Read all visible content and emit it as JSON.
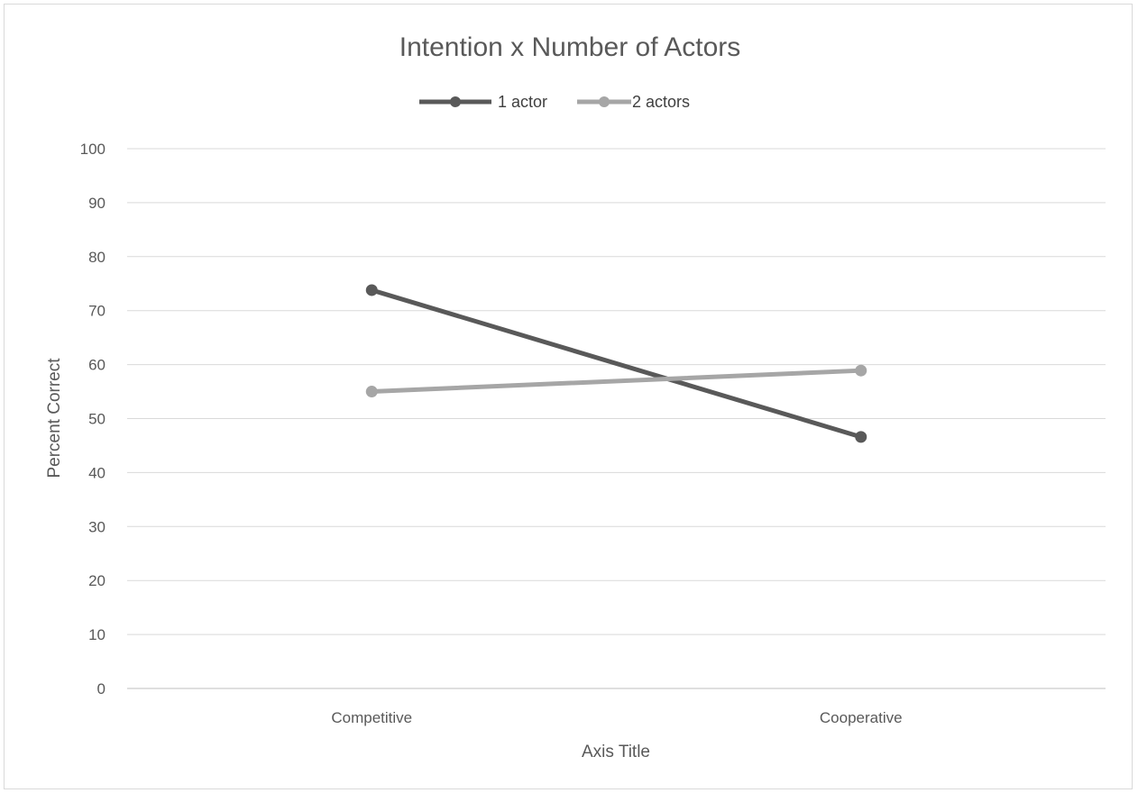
{
  "chart_data": {
    "type": "line",
    "title": "Intention x Number of Actors",
    "xlabel": "Axis Title",
    "ylabel": "Percent Correct",
    "categories": [
      "Competitive",
      "Cooperative"
    ],
    "ylim": [
      0,
      100
    ],
    "yticks": [
      0,
      10,
      20,
      30,
      40,
      50,
      60,
      70,
      80,
      90,
      100
    ],
    "grid": true,
    "legend_position": "top",
    "series": [
      {
        "name": "1 actor",
        "values": [
          73.8,
          46.6
        ],
        "color": "#595959"
      },
      {
        "name": "2 actors",
        "values": [
          55,
          58.9
        ],
        "color": "#a6a6a6"
      }
    ]
  }
}
